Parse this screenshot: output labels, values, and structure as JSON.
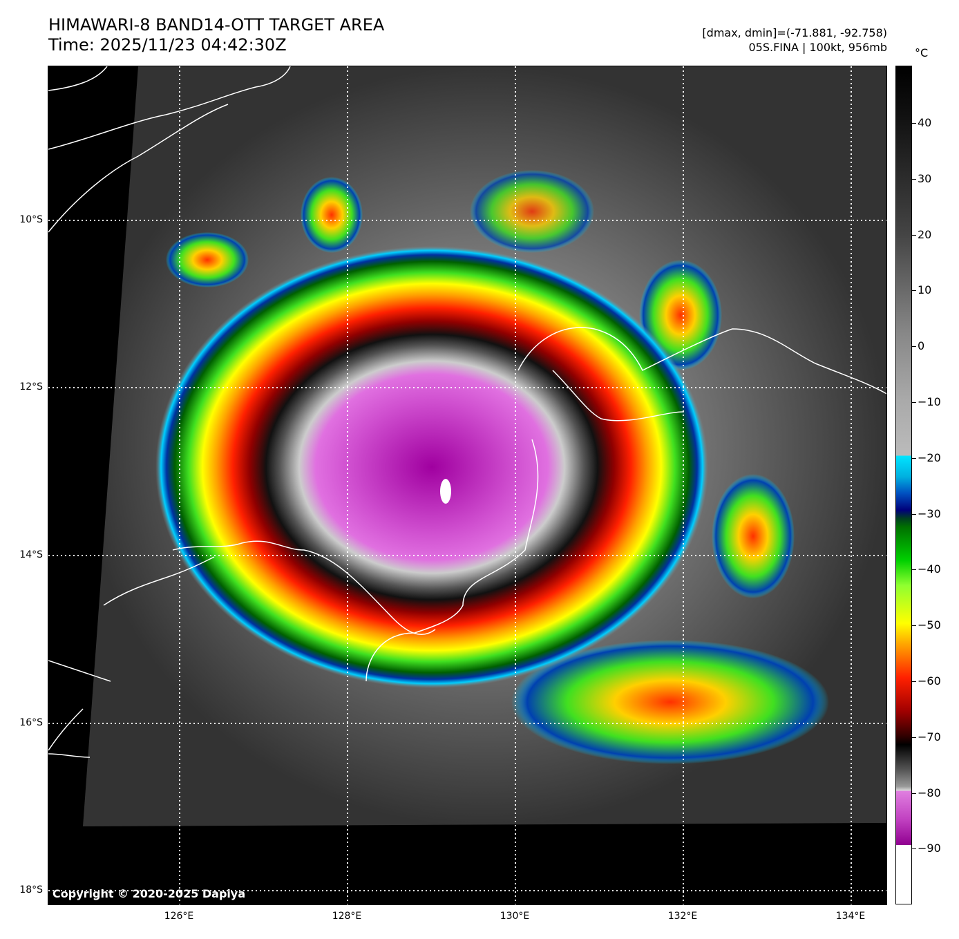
{
  "title": {
    "line1": "HIMAWARI-8 BAND14-OTT TARGET AREA",
    "line2": "Time: 2025/11/23 04:42:30Z"
  },
  "info": {
    "line1": "[dmax, dmin]=(-71.881, -92.758)",
    "line2": "05S.FINA | 100kt, 956mb"
  },
  "colorbar": {
    "unit": "°C",
    "ticks": [
      "40",
      "30",
      "20",
      "10",
      "0",
      "−10",
      "−20",
      "−30",
      "−40",
      "−50",
      "−60",
      "−70",
      "−80",
      "−90"
    ]
  },
  "latitude_labels": [
    "10°S",
    "12°S",
    "14°S",
    "16°S",
    "18°S"
  ],
  "longitude_labels": [
    "126°E",
    "128°E",
    "130°E",
    "132°E",
    "134°E"
  ],
  "copyright": "Copyright © 2020-2025 Dapiya"
}
